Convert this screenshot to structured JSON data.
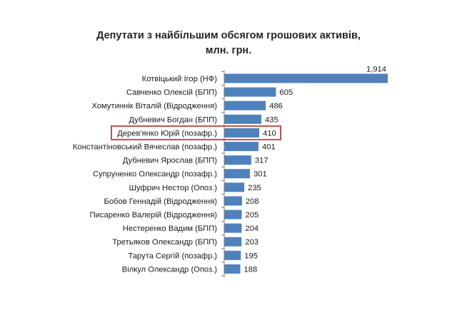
{
  "chart_data": {
    "type": "bar",
    "orientation": "horizontal",
    "title_line1": "Депутати з найбільшим обсягом грошових активів,",
    "title_line2": "млн. грн.",
    "categories": [
      "Котвіцький Ігор (НФ)",
      "Савченко Олексій (БПП)",
      "Хомутиннік Віталій  (Відродження)",
      "Дубневич Богдан (БПП)",
      "Дерев'янко Юрій (позафр.)",
      "Константіновський Вячеслав (позафр.)",
      "Дубневич Ярослав (БПП)",
      "Супруненко Олександр (позафр.)",
      "Шуфрич Нестор (Опоз.)",
      "Бобов Геннадій (Відродження)",
      "Писаренко Валерій (Відродження)",
      "Нестеренко Вадим (БПП)",
      "Третьяков Олександр (БПП)",
      "Тарута Сергій (позафр.)",
      "Вілкул Олександр (Опоз.)"
    ],
    "values": [
      1914,
      605,
      486,
      435,
      410,
      401,
      317,
      301,
      235,
      208,
      205,
      204,
      203,
      195,
      188
    ],
    "value_labels": [
      "1,914",
      "605",
      "486",
      "435",
      "410",
      "401",
      "317",
      "301",
      "235",
      "208",
      "205",
      "204",
      "203",
      "195",
      "188"
    ],
    "highlighted_index": 4,
    "colors": {
      "bar": "#4f81bd",
      "highlight_border": "#c0504d",
      "axis": "#808080"
    },
    "xlim": [
      0,
      1914
    ],
    "grid": false,
    "legend": "none"
  }
}
